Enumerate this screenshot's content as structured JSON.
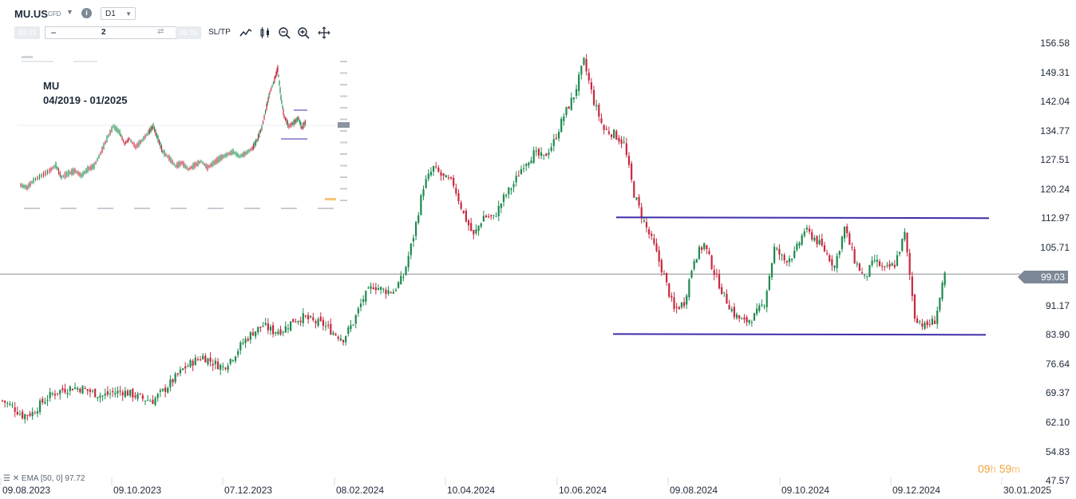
{
  "toolbar": {
    "symbol": "MU.US",
    "instrument_type": "CFD",
    "timeframe": "D1",
    "sell_price": "99.03",
    "quantity": "2",
    "buy_price": "99.35",
    "sltp_label": "SL/TP",
    "icons": [
      "line-chart-icon",
      "candle-chart-icon",
      "zoom-out-icon",
      "zoom-in-icon",
      "move-icon"
    ]
  },
  "inset": {
    "title": "MU",
    "subtitle": "04/2019 - 01/2025"
  },
  "indicator": {
    "label": "EMA [50, 0] 97.72"
  },
  "timer": {
    "hours": "09",
    "h_unit": "h",
    "minutes": "59",
    "m_unit": "m"
  },
  "colors": {
    "up": "#1d8a4e",
    "down": "#c8283e",
    "level_line": "#3d2fa8",
    "price_line": "#8a8f96",
    "timer": "#f0a33a"
  },
  "chart_data": {
    "type": "candlestick",
    "title": "",
    "symbol": "MU.US",
    "interval": "D1",
    "current_price": 99.03,
    "ylim": [
      47.57,
      156.58
    ],
    "y_ticks": [
      "156.58",
      "149.31",
      "142.04",
      "134.77",
      "127.51",
      "120.24",
      "112.97",
      "105.71",
      "99.03",
      "91.17",
      "83.90",
      "76.64",
      "69.37",
      "62.10",
      "54.83",
      "47.57"
    ],
    "x_ticks": [
      "09.08.2023",
      "09.10.2023",
      "07.12.2023",
      "08.02.2024",
      "10.04.2024",
      "10.06.2024",
      "09.08.2024",
      "09.10.2024",
      "09.12.2024",
      "30.01.2025"
    ],
    "approx_closes": [
      [
        0,
        67.5
      ],
      [
        4,
        66.0
      ],
      [
        8,
        63.8
      ],
      [
        12,
        64.5
      ],
      [
        16,
        67.2
      ],
      [
        20,
        69.2
      ],
      [
        24,
        70.2
      ],
      [
        28,
        70.8
      ],
      [
        32,
        70.5
      ],
      [
        36,
        69.5
      ],
      [
        40,
        68.7
      ],
      [
        44,
        69.5
      ],
      [
        48,
        69.8
      ],
      [
        52,
        69.0
      ],
      [
        56,
        68.0
      ],
      [
        60,
        67.5
      ],
      [
        64,
        69.8
      ],
      [
        68,
        72.5
      ],
      [
        72,
        75.3
      ],
      [
        76,
        77.2
      ],
      [
        80,
        78.5
      ],
      [
        84,
        77.0
      ],
      [
        88,
        75.8
      ],
      [
        92,
        78.5
      ],
      [
        96,
        82.0
      ],
      [
        100,
        84.6
      ],
      [
        104,
        86.2
      ],
      [
        108,
        84.8
      ],
      [
        112,
        85.2
      ],
      [
        116,
        87.5
      ],
      [
        120,
        88.3
      ],
      [
        124,
        87.2
      ],
      [
        128,
        86.5
      ],
      [
        132,
        84.5
      ],
      [
        136,
        83.0
      ],
      [
        140,
        87.0
      ],
      [
        144,
        93.0
      ],
      [
        148,
        96.2
      ],
      [
        152,
        95.0
      ],
      [
        156,
        94.8
      ],
      [
        160,
        98.5
      ],
      [
        164,
        108.5
      ],
      [
        168,
        121.0
      ],
      [
        172,
        125.5
      ],
      [
        176,
        123.0
      ],
      [
        180,
        121.5
      ],
      [
        184,
        114.0
      ],
      [
        188,
        108.5
      ],
      [
        192,
        113.5
      ],
      [
        196,
        113.0
      ],
      [
        200,
        118.0
      ],
      [
        204,
        121.5
      ],
      [
        208,
        126.5
      ],
      [
        212,
        129.0
      ],
      [
        216,
        128.0
      ],
      [
        220,
        132.0
      ],
      [
        224,
        138.5
      ],
      [
        228,
        143.5
      ],
      [
        232,
        152.0
      ],
      [
        236,
        142.0
      ],
      [
        240,
        135.0
      ],
      [
        244,
        134.0
      ],
      [
        248,
        131.5
      ],
      [
        252,
        119.0
      ],
      [
        256,
        112.0
      ],
      [
        260,
        106.0
      ],
      [
        264,
        98.5
      ],
      [
        268,
        90.0
      ],
      [
        272,
        92.0
      ],
      [
        276,
        103.0
      ],
      [
        280,
        106.5
      ],
      [
        284,
        99.5
      ],
      [
        288,
        93.5
      ],
      [
        292,
        89.0
      ],
      [
        296,
        87.0
      ],
      [
        300,
        88.5
      ],
      [
        304,
        92.0
      ],
      [
        308,
        105.5
      ],
      [
        312,
        102.5
      ],
      [
        316,
        104.0
      ],
      [
        320,
        110.0
      ],
      [
        324,
        108.0
      ],
      [
        328,
        105.0
      ],
      [
        332,
        101.0
      ],
      [
        336,
        110.5
      ],
      [
        340,
        102.5
      ],
      [
        344,
        98.0
      ],
      [
        348,
        102.5
      ],
      [
        352,
        100.0
      ],
      [
        356,
        101.5
      ],
      [
        360,
        109.0
      ],
      [
        364,
        88.5
      ],
      [
        368,
        86.0
      ],
      [
        372,
        87.5
      ],
      [
        376,
        98.5
      ]
    ],
    "horizontal_lines": [
      {
        "value": 112.97,
        "from": "2024-06-26",
        "to": "2025-01-14"
      },
      {
        "value": 83.9,
        "from": "2024-06-26",
        "to": "2025-01-14"
      }
    ]
  }
}
